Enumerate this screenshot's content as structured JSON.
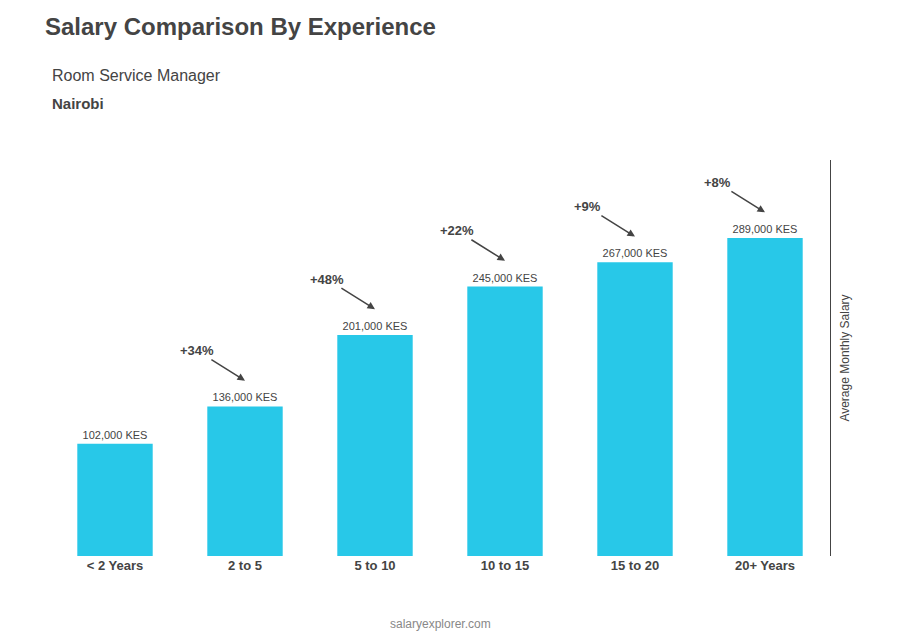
{
  "chart_data": {
    "type": "bar",
    "title": "Salary Comparison By Experience",
    "subtitle": [
      "Room Service Manager",
      "Nairobi"
    ],
    "ylabel": "Average Monthly Salary",
    "categories": [
      "< 2 Years",
      "2 to 5",
      "5 to 10",
      "10 to 15",
      "15 to 20",
      "20+ Years"
    ],
    "values": [
      102000,
      136000,
      201000,
      245000,
      267000,
      289000
    ],
    "value_labels": [
      "102,000 KES",
      "136,000 KES",
      "201,000 KES",
      "245,000 KES",
      "267,000 KES",
      "289,000 KES"
    ],
    "data_labels": true,
    "annotations": [
      "+34%",
      "+48%",
      "+22%",
      "+9%",
      "+8%"
    ],
    "watermark": "salaryexplorer.com",
    "color": "#28c8e8",
    "ylim": [
      0,
      360000
    ],
    "yticks": [],
    "tick_labels": "x",
    "grid": false
  }
}
